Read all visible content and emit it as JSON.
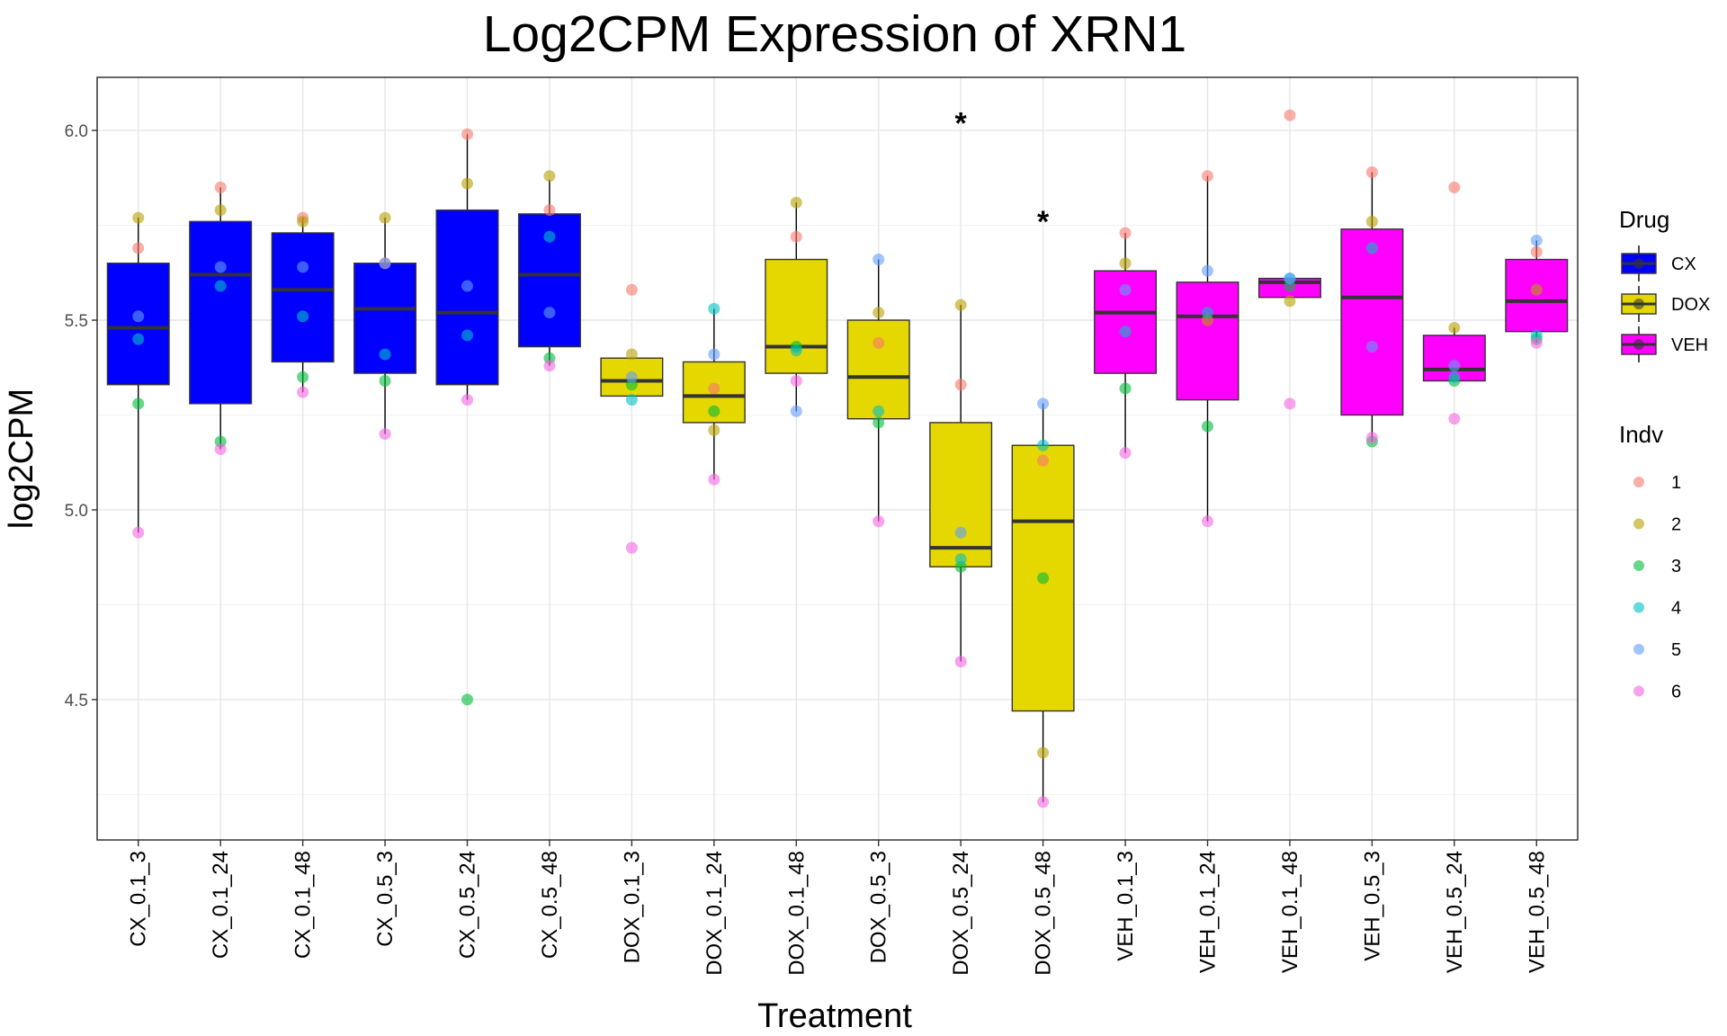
{
  "chart_data": {
    "type": "box",
    "title": "Log2CPM Expression of XRN1",
    "xlabel": "Treatment",
    "ylabel": "log2CPM",
    "ylim": [
      4.13,
      6.14
    ],
    "yticks": [
      4.5,
      5.0,
      5.5,
      6.0
    ],
    "ytick_labels": [
      "4.5",
      "5.0",
      "5.5",
      "6.0"
    ],
    "grid": true,
    "categories": [
      "CX_0.1_3",
      "CX_0.1_24",
      "CX_0.1_48",
      "CX_0.5_3",
      "CX_0.5_24",
      "CX_0.5_48",
      "DOX_0.1_3",
      "DOX_0.1_24",
      "DOX_0.1_48",
      "DOX_0.5_3",
      "DOX_0.5_24",
      "DOX_0.5_48",
      "VEH_0.1_3",
      "VEH_0.1_24",
      "VEH_0.1_48",
      "VEH_0.5_3",
      "VEH_0.5_24",
      "VEH_0.5_48"
    ],
    "drug_colors": {
      "CX": "#0000ff",
      "DOX": "#e5d800",
      "VEH": "#ff00ff"
    },
    "indv_colors": {
      "1": "#f8766d",
      "2": "#b79f00",
      "3": "#00ba38",
      "4": "#00bfc4",
      "5": "#619cff",
      "6": "#f564e3"
    },
    "boxes": [
      {
        "drug": "CX",
        "lower": 4.94,
        "q1": 5.33,
        "median": 5.48,
        "q3": 5.65,
        "upper": 5.77
      },
      {
        "drug": "CX",
        "lower": 5.16,
        "q1": 5.28,
        "median": 5.62,
        "q3": 5.76,
        "upper": 5.85
      },
      {
        "drug": "CX",
        "lower": 5.31,
        "q1": 5.39,
        "median": 5.58,
        "q3": 5.73,
        "upper": 5.77
      },
      {
        "drug": "CX",
        "lower": 5.2,
        "q1": 5.36,
        "median": 5.53,
        "q3": 5.65,
        "upper": 5.77
      },
      {
        "drug": "CX",
        "lower": 5.29,
        "q1": 5.33,
        "median": 5.52,
        "q3": 5.79,
        "upper": 5.99
      },
      {
        "drug": "CX",
        "lower": 5.38,
        "q1": 5.43,
        "median": 5.62,
        "q3": 5.78,
        "upper": 5.87
      },
      {
        "drug": "DOX",
        "lower": 5.3,
        "q1": 5.3,
        "median": 5.34,
        "q3": 5.4,
        "upper": 5.4
      },
      {
        "drug": "DOX",
        "lower": 5.08,
        "q1": 5.23,
        "median": 5.3,
        "q3": 5.39,
        "upper": 5.53
      },
      {
        "drug": "DOX",
        "lower": 5.26,
        "q1": 5.36,
        "median": 5.43,
        "q3": 5.66,
        "upper": 5.81
      },
      {
        "drug": "DOX",
        "lower": 4.97,
        "q1": 5.24,
        "median": 5.35,
        "q3": 5.5,
        "upper": 5.66
      },
      {
        "drug": "DOX",
        "lower": 4.6,
        "q1": 4.85,
        "median": 4.9,
        "q3": 5.23,
        "upper": 5.54
      },
      {
        "drug": "DOX",
        "lower": 4.23,
        "q1": 4.47,
        "median": 4.97,
        "q3": 5.17,
        "upper": 5.28
      },
      {
        "drug": "VEH",
        "lower": 5.15,
        "q1": 5.36,
        "median": 5.52,
        "q3": 5.63,
        "upper": 5.73
      },
      {
        "drug": "VEH",
        "lower": 4.97,
        "q1": 5.29,
        "median": 5.51,
        "q3": 5.6,
        "upper": 5.88
      },
      {
        "drug": "VEH",
        "lower": 5.56,
        "q1": 5.56,
        "median": 5.6,
        "q3": 5.61,
        "upper": 5.61
      },
      {
        "drug": "VEH",
        "lower": 5.18,
        "q1": 5.25,
        "median": 5.56,
        "q3": 5.74,
        "upper": 5.89
      },
      {
        "drug": "VEH",
        "lower": 5.34,
        "q1": 5.34,
        "median": 5.37,
        "q3": 5.46,
        "upper": 5.48
      },
      {
        "drug": "VEH",
        "lower": 5.44,
        "q1": 5.47,
        "median": 5.55,
        "q3": 5.66,
        "upper": 5.71
      }
    ],
    "points": [
      [
        5.69,
        5.77,
        5.28,
        5.45,
        5.51,
        4.94
      ],
      [
        5.85,
        5.79,
        5.18,
        5.59,
        5.64,
        5.16
      ],
      [
        5.77,
        5.76,
        5.35,
        5.51,
        5.64,
        5.31
      ],
      [
        5.65,
        5.77,
        5.34,
        5.41,
        5.65,
        5.2
      ],
      [
        5.99,
        5.86,
        4.5,
        5.46,
        5.59,
        5.29
      ],
      [
        5.79,
        5.88,
        5.4,
        5.72,
        5.52,
        5.38
      ],
      [
        5.58,
        5.41,
        5.33,
        5.29,
        5.35,
        4.9
      ],
      [
        5.32,
        5.21,
        5.26,
        5.53,
        5.41,
        5.08
      ],
      [
        5.72,
        5.81,
        5.43,
        5.42,
        5.26,
        5.34
      ],
      [
        5.44,
        5.52,
        5.23,
        5.26,
        5.66,
        4.97
      ],
      [
        5.33,
        5.54,
        4.85,
        4.87,
        4.94,
        4.6
      ],
      [
        5.13,
        4.36,
        4.82,
        5.17,
        5.28,
        4.23
      ],
      [
        5.73,
        5.65,
        5.32,
        5.47,
        5.58,
        5.15
      ],
      [
        5.88,
        5.5,
        5.22,
        5.52,
        5.63,
        4.97
      ],
      [
        6.04,
        5.55,
        5.59,
        5.61,
        5.61,
        5.28
      ],
      [
        5.89,
        5.76,
        5.18,
        5.69,
        5.43,
        5.19
      ],
      [
        5.85,
        5.48,
        5.34,
        5.35,
        5.38,
        5.24
      ],
      [
        5.68,
        5.58,
        5.45,
        5.46,
        5.71,
        5.44
      ]
    ],
    "annotations": [
      {
        "category_index": 10,
        "y": 6.03,
        "text": "*"
      },
      {
        "category_index": 11,
        "y": 5.77,
        "text": "*"
      }
    ],
    "legend": {
      "drug_title": "Drug",
      "drug_items": [
        "CX",
        "DOX",
        "VEH"
      ],
      "indv_title": "Indv",
      "indv_items": [
        "1",
        "2",
        "3",
        "4",
        "5",
        "6"
      ]
    }
  }
}
